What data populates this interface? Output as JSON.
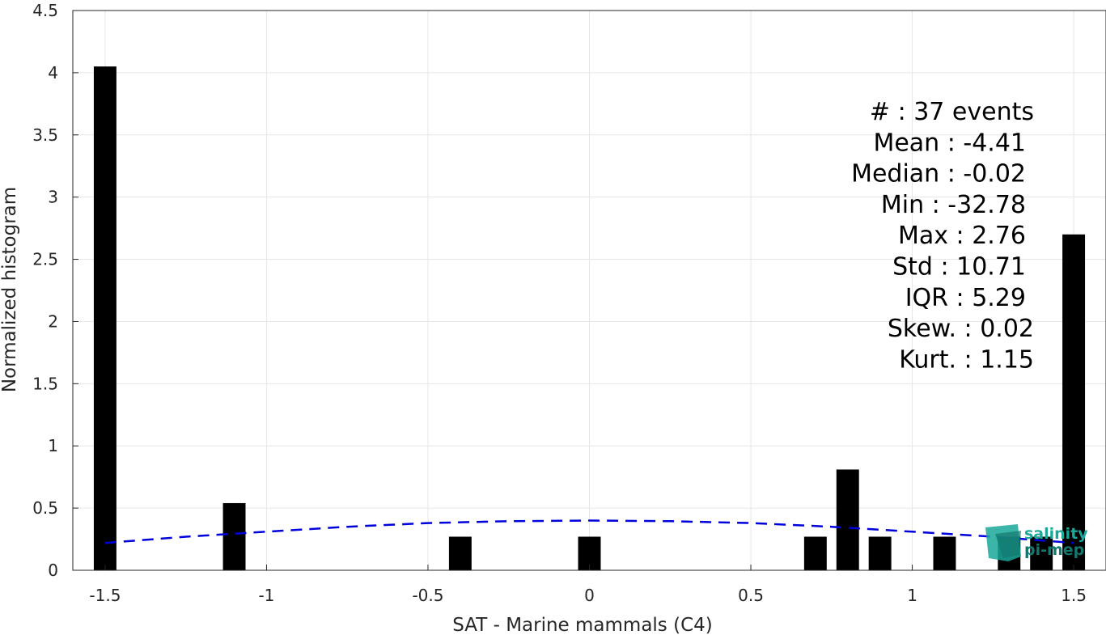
{
  "chart_data": {
    "type": "bar",
    "xlabel": "SAT - Marine mammals (C4)",
    "ylabel": "Normalized histogram",
    "xlim": [
      -1.6,
      1.6
    ],
    "ylim": [
      0,
      4.5
    ],
    "xticks": [
      -1.5,
      -1,
      -0.5,
      0,
      0.5,
      1,
      1.5
    ],
    "xtick_labels": [
      "-1.5",
      "-1",
      "-0.5",
      "0",
      "0.5",
      "1",
      "1.5"
    ],
    "yticks": [
      0,
      0.5,
      1,
      1.5,
      2,
      2.5,
      3,
      3.5,
      4,
      4.5
    ],
    "ytick_labels": [
      "0",
      "0.5",
      "1",
      "1.5",
      "2",
      "2.5",
      "3",
      "3.5",
      "4",
      "4.5"
    ],
    "grid": true,
    "bar_width": 0.07,
    "bar_color": "#000000",
    "bars": [
      {
        "x": -1.5,
        "value": 4.05
      },
      {
        "x": -1.1,
        "value": 0.54
      },
      {
        "x": -0.4,
        "value": 0.27
      },
      {
        "x": 0.0,
        "value": 0.27
      },
      {
        "x": 0.7,
        "value": 0.27
      },
      {
        "x": 0.8,
        "value": 0.81
      },
      {
        "x": 0.9,
        "value": 0.27
      },
      {
        "x": 1.1,
        "value": 0.27
      },
      {
        "x": 1.3,
        "value": 0.27
      },
      {
        "x": 1.4,
        "value": 0.27
      },
      {
        "x": 1.5,
        "value": 2.7
      }
    ],
    "fit_curve": {
      "style": "dashed",
      "color": "#0000dd",
      "points": [
        {
          "x": -1.5,
          "y": 0.22
        },
        {
          "x": -1.25,
          "y": 0.27
        },
        {
          "x": -1.0,
          "y": 0.31
        },
        {
          "x": -0.75,
          "y": 0.35
        },
        {
          "x": -0.5,
          "y": 0.38
        },
        {
          "x": -0.25,
          "y": 0.395
        },
        {
          "x": 0.0,
          "y": 0.4
        },
        {
          "x": 0.25,
          "y": 0.395
        },
        {
          "x": 0.5,
          "y": 0.38
        },
        {
          "x": 0.75,
          "y": 0.35
        },
        {
          "x": 1.0,
          "y": 0.31
        },
        {
          "x": 1.25,
          "y": 0.27
        },
        {
          "x": 1.5,
          "y": 0.22
        }
      ]
    },
    "annotations": [
      "#  : 37 events",
      "Mean : -4.41",
      "Median : -0.02",
      "Min : -32.78",
      "Max : 2.76",
      "Std : 10.71",
      "IQR : 5.29",
      "Skew. : 0.02",
      "Kurt. : 1.15"
    ]
  },
  "logo": {
    "line1": "salinity",
    "line2": "pi-mep",
    "color": "#1aa89a"
  }
}
